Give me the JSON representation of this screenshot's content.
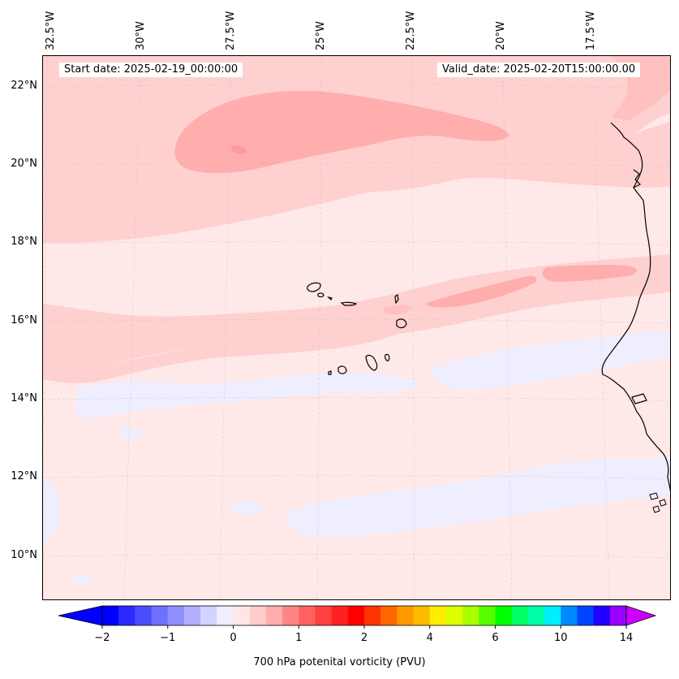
{
  "header": {
    "start_date": "Start date: 2025-02-19_00:00:00",
    "valid_date": "Valid_date: 2025-02-20T15:00:00.00"
  },
  "axes": {
    "longitude_labels": [
      "32.5°W",
      "30°W",
      "27.5°W",
      "25°W",
      "22.5°W",
      "20°W",
      "17.5°W"
    ],
    "latitude_labels": [
      "22°N",
      "20°N",
      "18°N",
      "16°N",
      "14°N",
      "12°N",
      "10°N"
    ]
  },
  "colorbar": {
    "title": "700 hPa potenital vorticity (PVU)",
    "tick_labels": [
      "−2",
      "−1",
      "0",
      "1",
      "2",
      "4",
      "6",
      "10",
      "14"
    ],
    "colors": [
      "#0000ff",
      "#2a2aff",
      "#4c4cff",
      "#7070ff",
      "#8f8fff",
      "#b0b0ff",
      "#d3d3ff",
      "#eeeeff",
      "#ffe6e6",
      "#ffcccc",
      "#ffadad",
      "#ff8585",
      "#ff6060",
      "#ff4040",
      "#ff2020",
      "#ff0000",
      "#ff3300",
      "#ff6600",
      "#ff9900",
      "#ffbb00",
      "#ffee00",
      "#ddff00",
      "#aaff00",
      "#55ff00",
      "#00ff00",
      "#00ff66",
      "#00ffaa",
      "#00eeff",
      "#0088ff",
      "#0044ff",
      "#2200ff",
      "#9900ff"
    ],
    "extend_low_color": "#0000ff",
    "extend_high_color": "#cc00ff"
  },
  "map_fill_colors": {
    "background": "#ffe8e8",
    "light_pink": "#ffd0d0",
    "medium_pink": "#ffaaaa",
    "pale_blue": "#eeeeff",
    "coastline": "#000000"
  }
}
